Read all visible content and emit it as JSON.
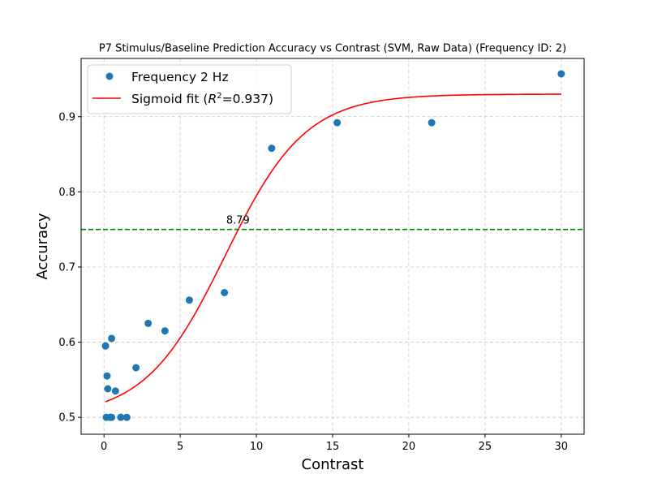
{
  "chart_data": {
    "type": "scatter",
    "title": "P7 Stimulus/Baseline Prediction Accuracy vs Contrast (SVM, Raw Data) (Frequency ID: 2)",
    "xlabel": "Contrast",
    "ylabel": "Accuracy",
    "xlim": [
      -1.5,
      31.5
    ],
    "ylim": [
      0.4775,
      0.9775
    ],
    "xticks": [
      0,
      5,
      10,
      15,
      20,
      25,
      30
    ],
    "yticks": [
      0.5,
      0.6,
      0.7,
      0.8,
      0.9
    ],
    "grid": true,
    "legend_position": "top-left",
    "series": [
      {
        "name": "Frequency 2 Hz",
        "kind": "scatter",
        "color": "#1f77b4",
        "points": [
          [
            0.1,
            0.595
          ],
          [
            0.15,
            0.5
          ],
          [
            0.2,
            0.555
          ],
          [
            0.25,
            0.538
          ],
          [
            0.4,
            0.5
          ],
          [
            0.5,
            0.605
          ],
          [
            0.5,
            0.5
          ],
          [
            0.75,
            0.535
          ],
          [
            1.1,
            0.5
          ],
          [
            1.5,
            0.5
          ],
          [
            2.1,
            0.566
          ],
          [
            2.9,
            0.625
          ],
          [
            4.0,
            0.615
          ],
          [
            5.6,
            0.656
          ],
          [
            7.9,
            0.666
          ],
          [
            11.0,
            0.858
          ],
          [
            15.3,
            0.892
          ],
          [
            21.5,
            0.892
          ],
          [
            30.0,
            0.957
          ]
        ]
      },
      {
        "name": "Sigmoid fit ($R^2$=0.937)",
        "kind": "line",
        "color": "#ff0000",
        "fit": {
          "lower": 0.5,
          "upper": 0.93,
          "x0": 7.95,
          "k": 0.38,
          "x_start": 0.1,
          "x_end": 30.0
        }
      }
    ],
    "threshold": {
      "y": 0.75,
      "color": "#008000"
    },
    "annotation": {
      "text": "8.79",
      "x": 8.79,
      "y": 0.75
    }
  },
  "legend": {
    "entries": [
      {
        "label": "Frequency 2 Hz"
      },
      {
        "label_main": "Sigmoid fit (",
        "label_var": "R",
        "label_sup": "2",
        "label_end": "=0.937)"
      }
    ]
  }
}
